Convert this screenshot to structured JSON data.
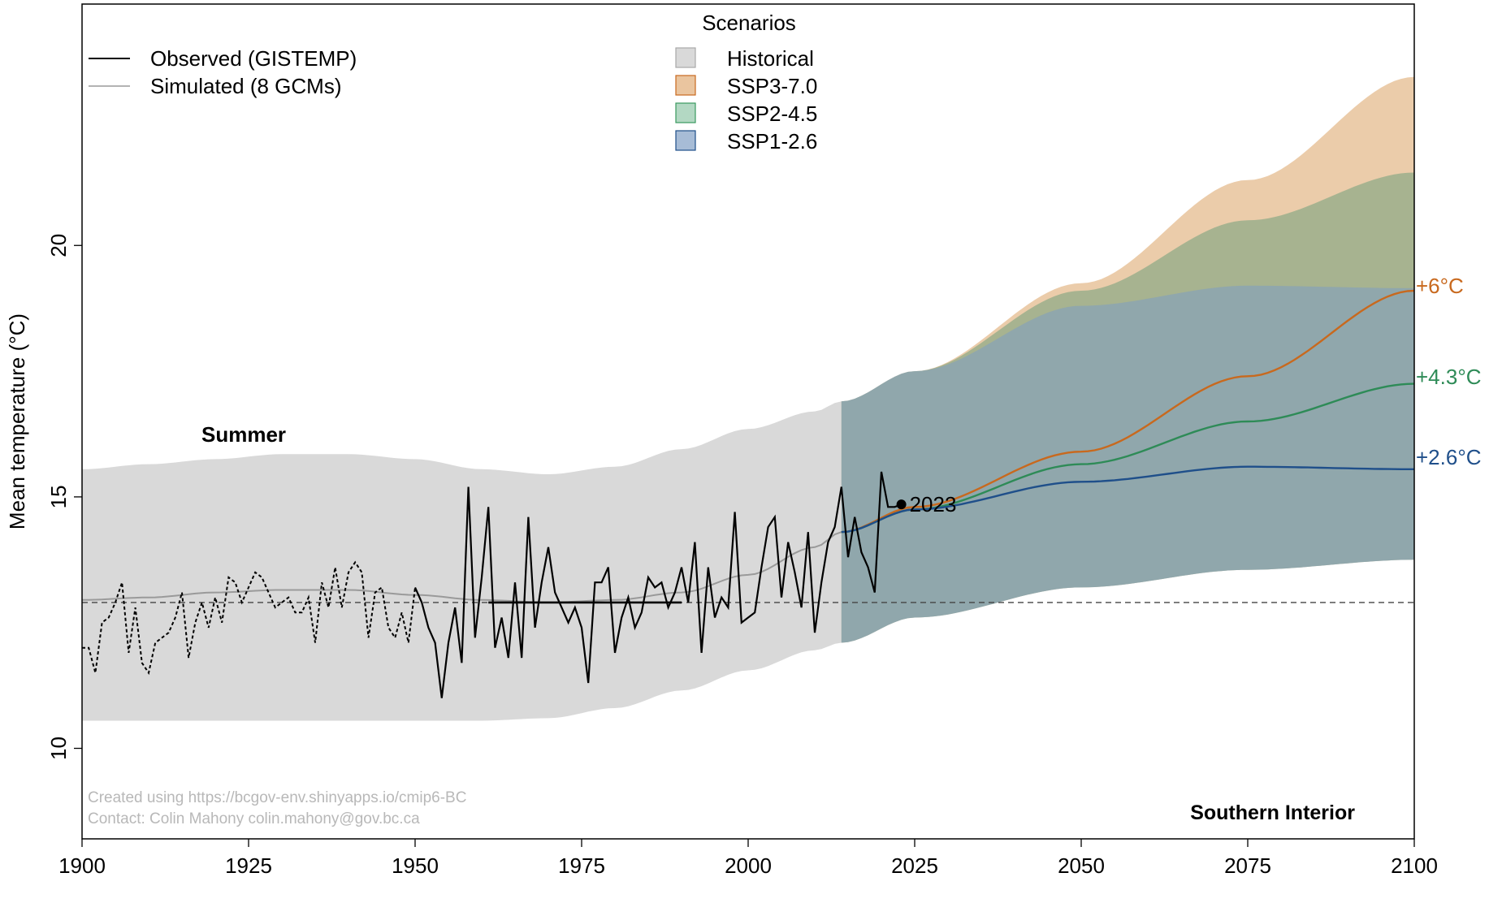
{
  "chart_data": {
    "type": "area",
    "title": "",
    "xlabel": "",
    "ylabel": "Mean temperature (°C)",
    "xlim": [
      1900,
      2100
    ],
    "ylim": [
      8.2,
      24.8
    ],
    "xticks": [
      1900,
      1925,
      1950,
      1975,
      2000,
      2025,
      2050,
      2075,
      2100
    ],
    "yticks": [
      10,
      15,
      20
    ],
    "season_label": "Summer",
    "region_label": "Southern Interior",
    "reference_line": 12.9,
    "credits": [
      "Created using https://bcgov-env.shinyapps.io/cmip6-BC",
      "Contact: Colin Mahony colin.mahony@gov.bc.ca"
    ],
    "legend_lines": [
      {
        "label": "Observed (GISTEMP)",
        "color": "#000000"
      },
      {
        "label": "Simulated (8 GCMs)",
        "color": "#b3b3b3"
      }
    ],
    "legend_scenarios": {
      "title": "Scenarios",
      "items": [
        {
          "label": "Historical",
          "fill": "#d9d9d9",
          "stroke": "#a8a8a8"
        },
        {
          "label": "SSP3-7.0",
          "fill": "#eac59f",
          "stroke": "#c8691e"
        },
        {
          "label": "SSP2-4.5",
          "fill": "#b3d8c3",
          "stroke": "#3a9a5f"
        },
        {
          "label": "SSP1-2.6",
          "fill": "#a7bcd6",
          "stroke": "#1f4f8a"
        }
      ]
    },
    "historical_band": {
      "x": [
        1900,
        1910,
        1920,
        1930,
        1940,
        1950,
        1960,
        1970,
        1980,
        1990,
        2000,
        2010,
        2014
      ],
      "lower": [
        10.55,
        10.55,
        10.55,
        10.55,
        10.55,
        10.55,
        10.55,
        10.6,
        10.8,
        11.15,
        11.55,
        11.95,
        12.1
      ],
      "upper": [
        15.55,
        15.65,
        15.75,
        15.85,
        15.85,
        15.75,
        15.55,
        15.45,
        15.6,
        15.95,
        16.35,
        16.7,
        16.9
      ]
    },
    "simulated_mean": {
      "x": [
        1900,
        1910,
        1920,
        1930,
        1940,
        1950,
        1960,
        1970,
        1980,
        1990,
        2000,
        2010,
        2014
      ],
      "values": [
        12.95,
        13.0,
        13.1,
        13.15,
        13.15,
        13.05,
        12.95,
        12.9,
        12.95,
        13.1,
        13.45,
        14.0,
        14.3
      ]
    },
    "series": [
      {
        "name": "SSP3-7.0",
        "color": "#c8691e",
        "fill": "#eac59f",
        "end_label": "+6°C",
        "x": [
          2014,
          2025,
          2050,
          2075,
          2100
        ],
        "mean": [
          14.3,
          14.8,
          15.9,
          17.4,
          19.1
        ],
        "lower": [
          12.1,
          12.6,
          13.2,
          13.55,
          13.75
        ],
        "upper": [
          16.9,
          17.5,
          19.25,
          21.3,
          23.35
        ]
      },
      {
        "name": "SSP2-4.5",
        "color": "#2e8b57",
        "fill": "#b3d8c3",
        "end_label": "+4.3°C",
        "x": [
          2014,
          2025,
          2050,
          2075,
          2100
        ],
        "mean": [
          14.3,
          14.75,
          15.65,
          16.5,
          17.25
        ],
        "lower": [
          12.1,
          12.6,
          13.2,
          13.55,
          13.75
        ],
        "upper": [
          16.9,
          17.5,
          19.1,
          20.5,
          21.45
        ]
      },
      {
        "name": "SSP1-2.6",
        "color": "#1f4f8a",
        "fill": "#a7bcd6",
        "end_label": "+2.6°C",
        "x": [
          2014,
          2025,
          2050,
          2075,
          2100
        ],
        "mean": [
          14.3,
          14.75,
          15.3,
          15.6,
          15.55
        ],
        "lower": [
          12.1,
          12.6,
          13.2,
          13.55,
          13.75
        ],
        "upper": [
          16.9,
          17.5,
          18.8,
          19.2,
          19.15
        ]
      }
    ],
    "observed_pre1950": {
      "x": [
        1900,
        1901,
        1902,
        1903,
        1904,
        1905,
        1906,
        1907,
        1908,
        1909,
        1910,
        1911,
        1912,
        1913,
        1914,
        1915,
        1916,
        1917,
        1918,
        1919,
        1920,
        1921,
        1922,
        1923,
        1924,
        1925,
        1926,
        1927,
        1928,
        1929,
        1930,
        1931,
        1932,
        1933,
        1934,
        1935,
        1936,
        1937,
        1938,
        1939,
        1940,
        1941,
        1942,
        1943,
        1944,
        1945,
        1946,
        1947,
        1948,
        1949,
        1950
      ],
      "values": [
        12.0,
        12.0,
        11.5,
        12.5,
        12.6,
        12.9,
        13.3,
        11.9,
        12.8,
        11.7,
        11.5,
        12.1,
        12.2,
        12.3,
        12.6,
        13.1,
        11.8,
        12.5,
        12.9,
        12.4,
        13.0,
        12.5,
        13.4,
        13.3,
        12.9,
        13.2,
        13.5,
        13.4,
        13.1,
        12.8,
        12.9,
        13.0,
        12.7,
        12.7,
        13.0,
        12.1,
        13.3,
        12.8,
        13.6,
        12.8,
        13.5,
        13.7,
        13.5,
        12.2,
        13.1,
        13.2,
        12.4,
        12.2,
        12.7,
        12.1,
        13.2
      ]
    },
    "observed_post1950": {
      "x": [
        1950,
        1951,
        1952,
        1953,
        1954,
        1955,
        1956,
        1957,
        1958,
        1959,
        1960,
        1961,
        1962,
        1963,
        1964,
        1965,
        1966,
        1967,
        1968,
        1969,
        1970,
        1971,
        1972,
        1973,
        1974,
        1975,
        1976,
        1977,
        1978,
        1979,
        1980,
        1981,
        1982,
        1983,
        1984,
        1985,
        1986,
        1987,
        1988,
        1989,
        1990,
        1991,
        1992,
        1993,
        1994,
        1995,
        1996,
        1997,
        1998,
        1999,
        2000,
        2001,
        2002,
        2003,
        2004,
        2005,
        2006,
        2007,
        2008,
        2009,
        2010,
        2011,
        2012,
        2013,
        2014,
        2015,
        2016,
        2017,
        2018,
        2019,
        2020,
        2021,
        2022,
        2023
      ],
      "values": [
        13.2,
        12.9,
        12.4,
        12.1,
        11.0,
        12.1,
        12.8,
        11.7,
        15.2,
        12.2,
        13.4,
        14.8,
        12.0,
        12.6,
        11.8,
        13.3,
        11.8,
        14.6,
        12.4,
        13.3,
        14.0,
        13.1,
        12.8,
        12.5,
        12.8,
        12.4,
        11.3,
        13.3,
        13.3,
        13.6,
        11.9,
        12.6,
        13.0,
        12.4,
        12.7,
        13.4,
        13.2,
        13.3,
        12.8,
        13.1,
        13.6,
        12.9,
        14.1,
        11.9,
        13.6,
        12.6,
        13.0,
        12.8,
        14.7,
        12.5,
        12.6,
        12.7,
        13.6,
        14.4,
        14.6,
        13.0,
        14.1,
        13.5,
        12.8,
        14.3,
        12.3,
        13.3,
        14.1,
        14.4,
        15.2,
        13.8,
        14.6,
        13.9,
        13.6,
        13.1,
        15.5,
        14.8,
        14.8,
        14.85
      ]
    },
    "observed_baseline": {
      "x": [
        1961,
        1990
      ],
      "value": 12.9
    },
    "highlight_point": {
      "x": 2023,
      "y": 14.85,
      "label": "2023"
    }
  }
}
